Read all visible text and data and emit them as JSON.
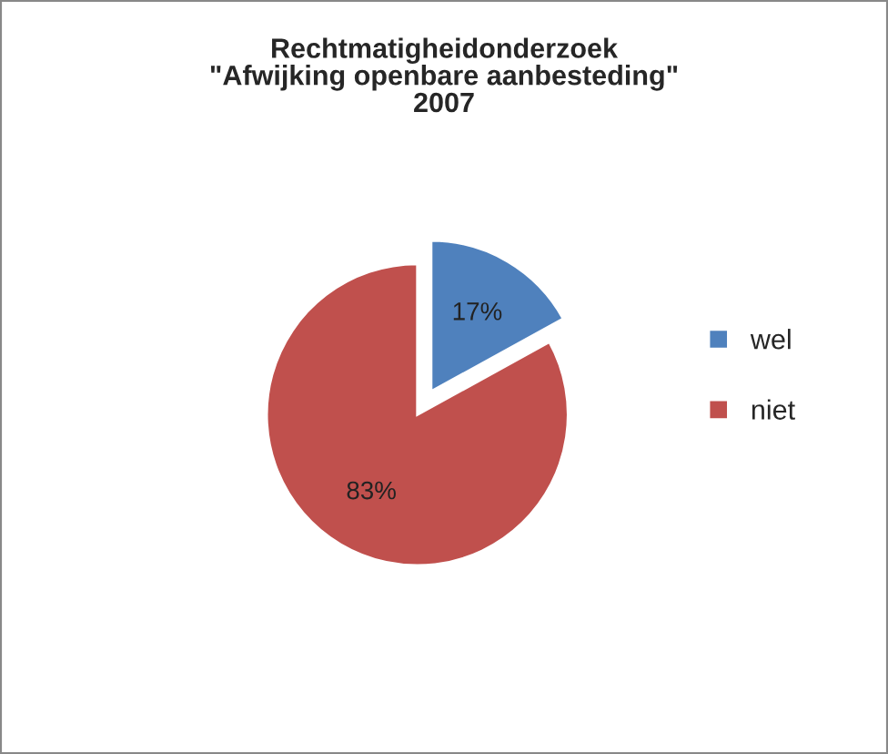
{
  "chart_data": {
    "type": "pie",
    "title": "Rechtmatigheidonderzoek\n\"Afwijking openbare aanbesteding\"\n2007",
    "categories": [
      "wel",
      "niet"
    ],
    "values": [
      17,
      83
    ],
    "colors": [
      "#4f81bd",
      "#c0504d"
    ],
    "value_labels": [
      "17%",
      "83%"
    ],
    "legend": "right"
  }
}
